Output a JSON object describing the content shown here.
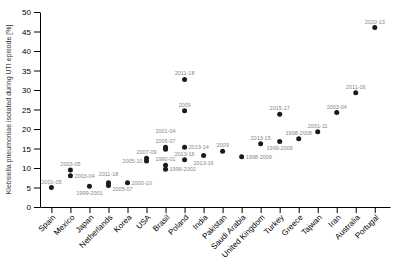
{
  "chart_data": {
    "type": "scatter",
    "x": [
      0,
      1.0,
      1.0,
      2,
      3.0,
      3.0,
      4,
      5.0,
      5.0,
      6.0,
      6.0,
      6.0,
      6.0,
      7.0,
      7.0,
      7.0,
      7.0,
      8,
      9,
      10,
      11,
      12.0,
      12.0,
      13,
      14,
      15,
      16,
      17
    ],
    "values": [
      5.0,
      9.5,
      8.0,
      5.3,
      5.5,
      6.2,
      6.2,
      12.5,
      11.8,
      15.3,
      14.8,
      9.7,
      10.7,
      32.7,
      24.7,
      15.3,
      12.1,
      13.2,
      14.3,
      12.9,
      16.2,
      23.8,
      16.8,
      17.5,
      19.3,
      24.2,
      29.3,
      46.0
    ],
    "labels": [
      "2001-05",
      "2003-05",
      "2003-04",
      "1999-2001",
      "2011-18",
      "2005-07",
      "2000-10",
      "2007-09",
      "2005-10",
      "2006-07",
      "2001-04",
      "1996-2002",
      "1990-01",
      "2011-18",
      "2009",
      "2013-14",
      "2013-16",
      "2013-16",
      "2009",
      "1998-2009",
      "2013-15",
      "2015-17",
      "1999-2006",
      "1998-2008",
      "2001-11",
      "2003-04",
      "2011-16",
      "2020-13"
    ],
    "color": "#1a1a1a",
    "y_label": "Klebsiella pneumoniae isolated during UTI episode [%]",
    "xlim": [
      -0.6,
      17.8
    ],
    "xticks": [
      {
        "value": 0,
        "label": "Spain"
      },
      {
        "value": 1,
        "label": "Mexico"
      },
      {
        "value": 2,
        "label": "Japan"
      },
      {
        "value": 3,
        "label": "Netherlands"
      },
      {
        "value": 4,
        "label": "Korea"
      },
      {
        "value": 5,
        "label": "USA"
      },
      {
        "value": 6,
        "label": "Brasil"
      },
      {
        "value": 7,
        "label": "Poland"
      },
      {
        "value": 8,
        "label": "India"
      },
      {
        "value": 9,
        "label": "Pakistan"
      },
      {
        "value": 10,
        "label": "Saudi Arabia"
      },
      {
        "value": 11,
        "label": "United Kingdom"
      },
      {
        "value": 12,
        "label": "Turkey"
      },
      {
        "value": 13,
        "label": "Greece"
      },
      {
        "value": 14,
        "label": "Tajwan"
      },
      {
        "value": 15,
        "label": "Iran"
      },
      {
        "value": 16,
        "label": "Australia"
      },
      {
        "value": 17,
        "label": "Portugal"
      }
    ],
    "ylim": [
      0,
      50
    ],
    "yticks": [
      0,
      5,
      10,
      15,
      20,
      25,
      30,
      35,
      40,
      45,
      50
    ],
    "grid": false
  }
}
